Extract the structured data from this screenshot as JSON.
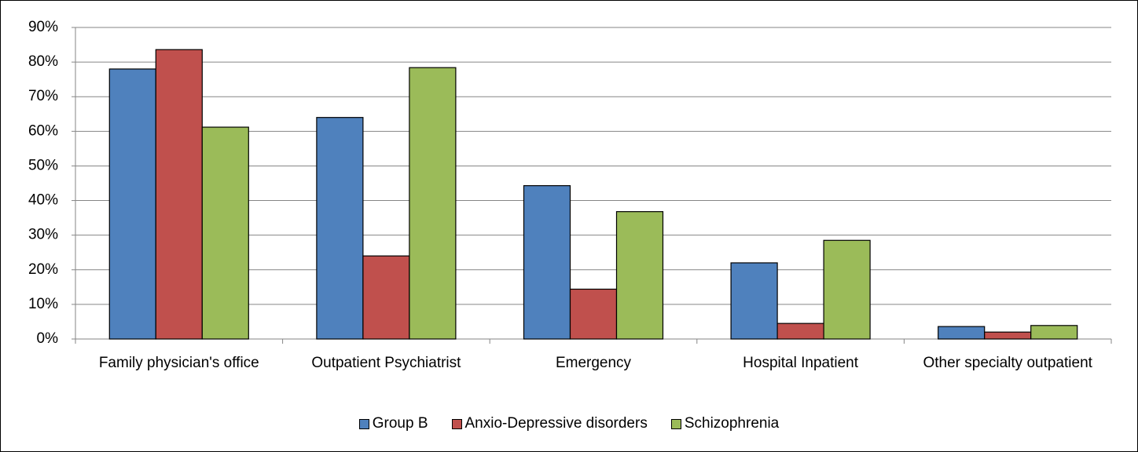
{
  "chart_data": {
    "type": "bar",
    "categories": [
      "Family physician's office",
      "Outpatient Psychiatrist",
      "Emergency",
      "Hospital Inpatient",
      "Other specialty outpatient"
    ],
    "series": [
      {
        "name": "Group B",
        "color": "#4f81bd",
        "values": [
          78,
          64,
          44.3,
          22,
          3.6
        ]
      },
      {
        "name": "Anxio-Depressive disorders",
        "color": "#c0504d",
        "values": [
          83.6,
          24,
          14.4,
          4.5,
          2
        ]
      },
      {
        "name": "Schizophrenia",
        "color": "#9bbb59",
        "values": [
          61.2,
          78.4,
          36.8,
          28.5,
          3.9
        ]
      }
    ],
    "ylim": [
      0,
      90
    ],
    "yticks": [
      {
        "value": 0,
        "label": "0%"
      },
      {
        "value": 10,
        "label": "10%"
      },
      {
        "value": 20,
        "label": "20%"
      },
      {
        "value": 30,
        "label": "30%"
      },
      {
        "value": 40,
        "label": "40%"
      },
      {
        "value": 50,
        "label": "50%"
      },
      {
        "value": 60,
        "label": "60%"
      },
      {
        "value": 70,
        "label": "70%"
      },
      {
        "value": 80,
        "label": "80%"
      },
      {
        "value": 90,
        "label": "90%"
      }
    ],
    "grid": true,
    "legend": "bottom"
  }
}
